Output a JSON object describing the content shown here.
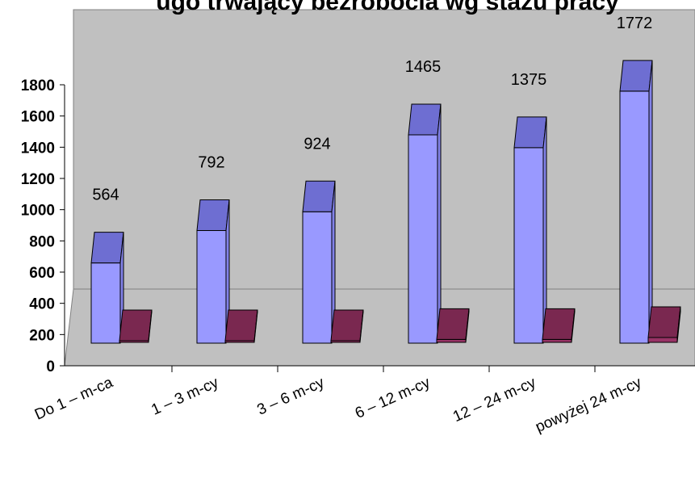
{
  "chart_data": {
    "type": "bar",
    "title": "ugo trwający bezrobocia wg stażu pracy",
    "categories": [
      "Do 1 – m-ca",
      "1 – 3 m-cy",
      "3 – 6 m-cy",
      "6 – 12 m-cy",
      "12 – 24 m-cy",
      "powyżej 24 m-cy"
    ],
    "series": [
      {
        "values": [
          564,
          792,
          924,
          1465,
          1375,
          1772
        ]
      },
      {
        "values": [
          0,
          0,
          0,
          18,
          18,
          30
        ]
      }
    ],
    "data_labels": [
      "564",
      "792",
      "924",
      "1465",
      "1375",
      "1772"
    ],
    "yticks": [
      "0",
      "200",
      "400",
      "600",
      "800",
      "1000",
      "1200",
      "1400",
      "1600",
      "1800"
    ],
    "ylim": [
      0,
      1800
    ],
    "xlabel": "",
    "ylabel": "",
    "grid": false,
    "style": "3d-columns",
    "colors": {
      "series1_front": "#9999ff",
      "series1_top": "#6e6ed2",
      "series1_side": "#8282e8",
      "series2_front": "#993366",
      "series2_top": "#7a2850",
      "series2_side": "#5e1e3e",
      "wall": "#c0c0c0",
      "floor": "#c0c0c0",
      "outline": "#000000"
    }
  }
}
